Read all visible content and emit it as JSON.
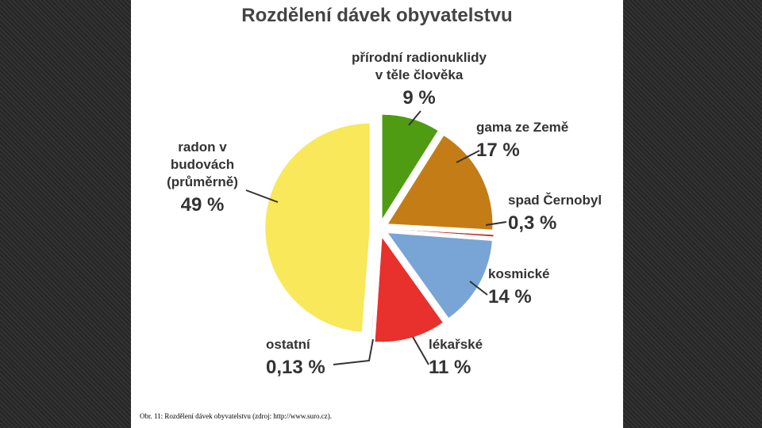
{
  "chart_data": {
    "type": "pie",
    "title": "Rozdělení dávek obyvatelstvu",
    "categories": [
      "přírodní radionuklidy\nv těle člověka",
      "gama ze Země",
      "spad Černobyl",
      "kosmické",
      "lékařské",
      "ostatní",
      "radon v budovách\n(průměrně)"
    ],
    "values": [
      9,
      17,
      0.3,
      14,
      11,
      0.13,
      49
    ],
    "value_labels": [
      "9 %",
      "17 %",
      "0,3 %",
      "14 %",
      "11 %",
      "0,13 %",
      "49 %"
    ],
    "colors": [
      "#4f9b12",
      "#c47d16",
      "#b8322a",
      "#79a4d6",
      "#e8302c",
      "#d8d8d8",
      "#f8e85a"
    ],
    "caption": "Obr. 11: Rozdělení dávek obyvatelstvu (zdroj: http://www.suro.cz)."
  }
}
